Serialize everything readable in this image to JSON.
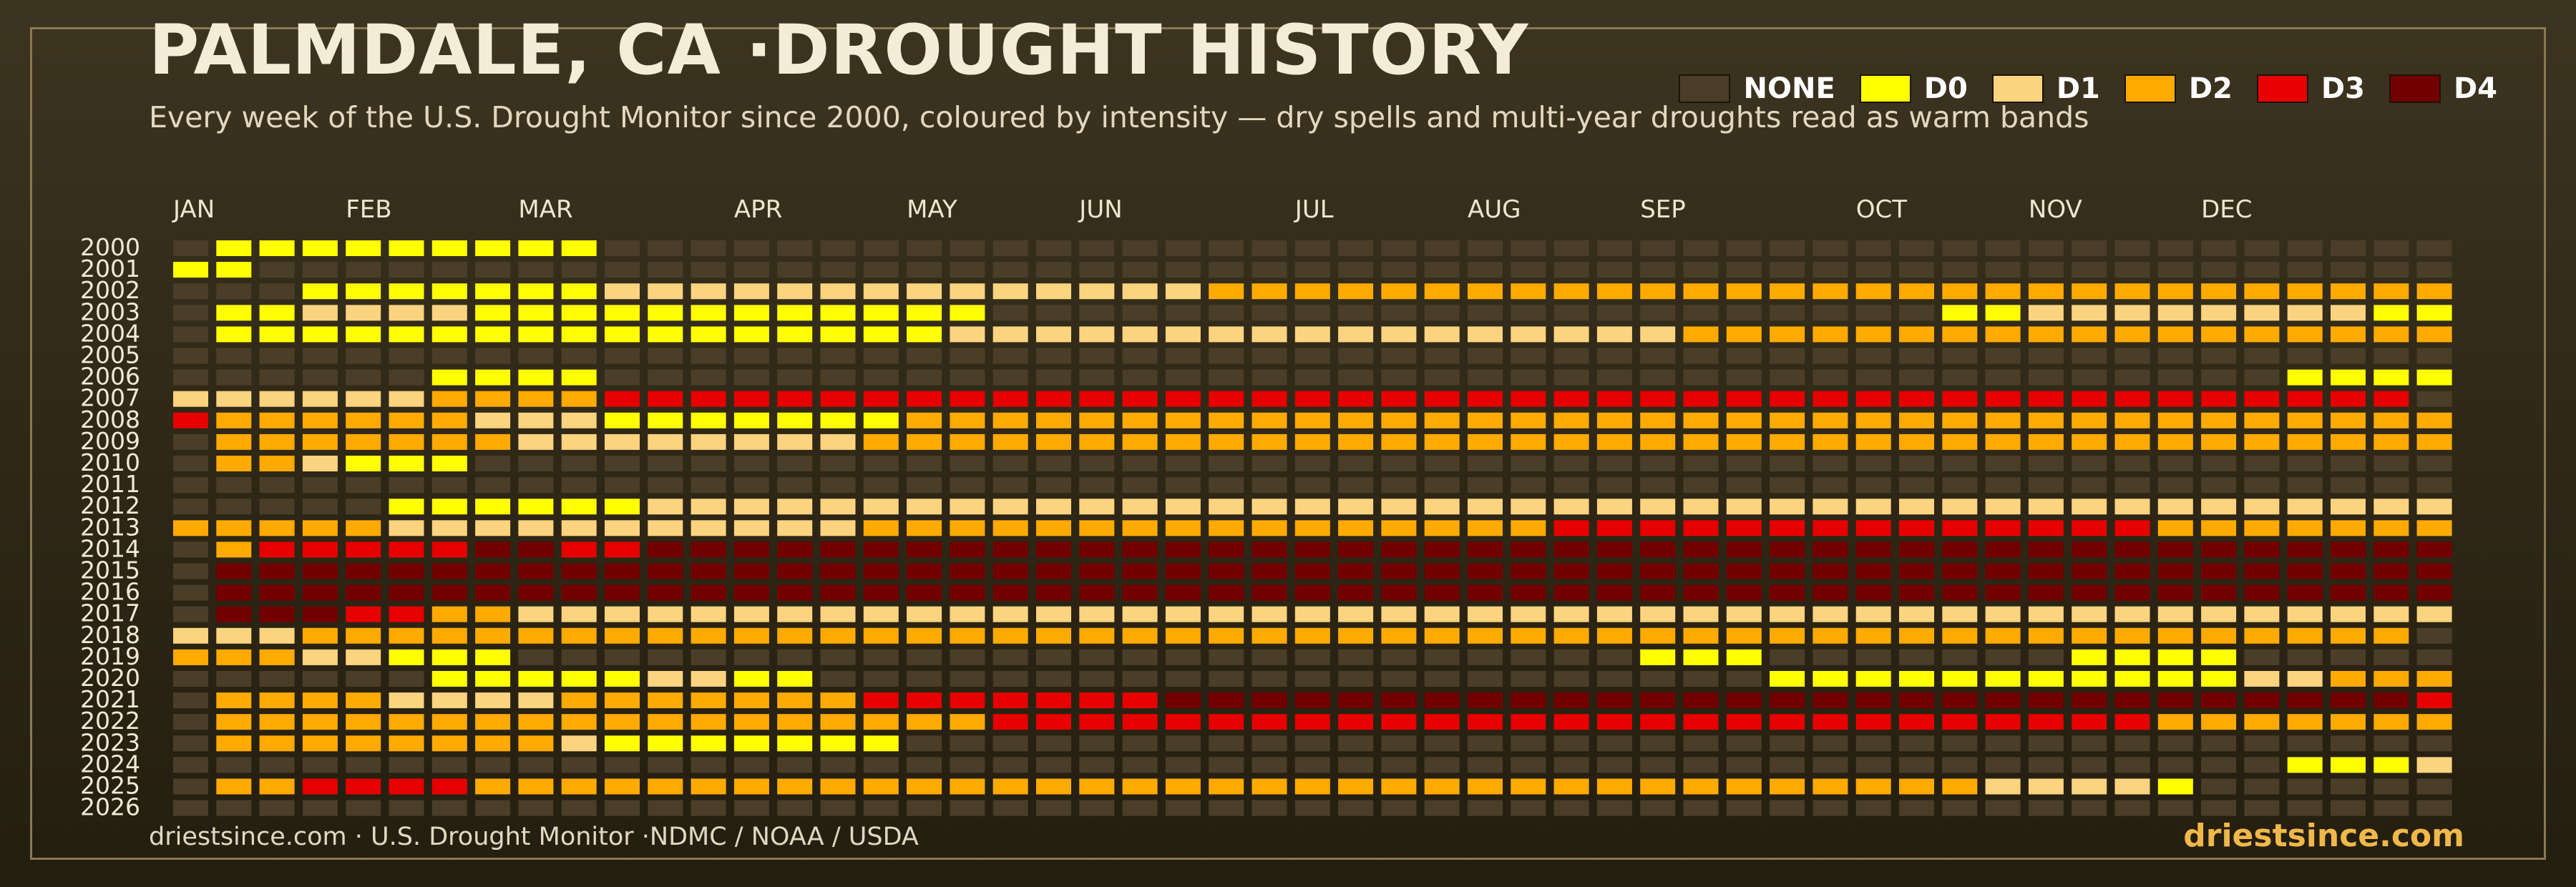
{
  "header": {
    "title": "PALMDALE, CA ·DROUGHT HISTORY",
    "subtitle": "Every week of the U.S. Drought Monitor since 2000, coloured by intensity — dry spells and multi-year droughts read as warm bands"
  },
  "legend": [
    {
      "label": "NONE",
      "color": "#4a3e28"
    },
    {
      "label": "D0",
      "color": "#ffff00"
    },
    {
      "label": "D1",
      "color": "#fcd37f"
    },
    {
      "label": "D2",
      "color": "#ffaa00"
    },
    {
      "label": "D3",
      "color": "#e60000"
    },
    {
      "label": "D4",
      "color": "#730000"
    }
  ],
  "footer": {
    "source": "driestsince.com  · U.S. Drought Monitor ·NDMC / NOAA / USDA",
    "brand": "driestsince.com"
  },
  "chart_data": {
    "type": "heatmap",
    "x_ticks": [
      {
        "label": "JAN",
        "col": 0
      },
      {
        "label": "FEB",
        "col": 4
      },
      {
        "label": "MAR",
        "col": 8
      },
      {
        "label": "APR",
        "col": 13
      },
      {
        "label": "MAY",
        "col": 17
      },
      {
        "label": "JUN",
        "col": 21
      },
      {
        "label": "JUL",
        "col": 26
      },
      {
        "label": "AUG",
        "col": 30
      },
      {
        "label": "SEP",
        "col": 34
      },
      {
        "label": "OCT",
        "col": 39
      },
      {
        "label": "NOV",
        "col": 43
      },
      {
        "label": "DEC",
        "col": 47
      }
    ],
    "categories": [
      "NONE",
      "D0",
      "D1",
      "D2",
      "D3",
      "D4"
    ],
    "weeks_per_year": 53,
    "rows": [
      {
        "year": "2000",
        "segments": [
          [
            0,
            1,
            0
          ],
          [
            1,
            10,
            1
          ],
          [
            10,
            53,
            0
          ]
        ]
      },
      {
        "year": "2001",
        "segments": [
          [
            0,
            2,
            1
          ],
          [
            2,
            53,
            0
          ]
        ]
      },
      {
        "year": "2002",
        "segments": [
          [
            0,
            3,
            0
          ],
          [
            3,
            10,
            1
          ],
          [
            10,
            24,
            2
          ],
          [
            24,
            53,
            3
          ]
        ]
      },
      {
        "year": "2003",
        "segments": [
          [
            0,
            1,
            0
          ],
          [
            1,
            3,
            1
          ],
          [
            3,
            7,
            2
          ],
          [
            7,
            19,
            1
          ],
          [
            19,
            41,
            0
          ],
          [
            41,
            43,
            1
          ],
          [
            43,
            48,
            2
          ],
          [
            48,
            51,
            2
          ],
          [
            51,
            53,
            1
          ]
        ]
      },
      {
        "year": "2004",
        "segments": [
          [
            0,
            1,
            0
          ],
          [
            1,
            10,
            1
          ],
          [
            10,
            18,
            1
          ],
          [
            18,
            35,
            2
          ],
          [
            35,
            53,
            3
          ]
        ]
      },
      {
        "year": "2005",
        "segments": [
          [
            0,
            53,
            0
          ]
        ]
      },
      {
        "year": "2006",
        "segments": [
          [
            0,
            6,
            0
          ],
          [
            6,
            10,
            1
          ],
          [
            10,
            49,
            0
          ],
          [
            49,
            53,
            1
          ]
        ]
      },
      {
        "year": "2007",
        "segments": [
          [
            0,
            6,
            2
          ],
          [
            6,
            10,
            3
          ],
          [
            10,
            52,
            4
          ],
          [
            52,
            53,
            0
          ]
        ]
      },
      {
        "year": "2008",
        "segments": [
          [
            0,
            1,
            4
          ],
          [
            1,
            7,
            3
          ],
          [
            7,
            10,
            2
          ],
          [
            10,
            17,
            1
          ],
          [
            17,
            53,
            3
          ]
        ]
      },
      {
        "year": "2009",
        "segments": [
          [
            0,
            1,
            0
          ],
          [
            1,
            8,
            3
          ],
          [
            8,
            10,
            2
          ],
          [
            10,
            16,
            2
          ],
          [
            16,
            53,
            3
          ]
        ]
      },
      {
        "year": "2010",
        "segments": [
          [
            0,
            1,
            0
          ],
          [
            1,
            3,
            3
          ],
          [
            3,
            4,
            2
          ],
          [
            4,
            7,
            1
          ],
          [
            7,
            53,
            0
          ]
        ]
      },
      {
        "year": "2011",
        "segments": [
          [
            0,
            53,
            0
          ]
        ]
      },
      {
        "year": "2012",
        "segments": [
          [
            0,
            5,
            0
          ],
          [
            5,
            11,
            1
          ],
          [
            11,
            53,
            2
          ]
        ]
      },
      {
        "year": "2013",
        "segments": [
          [
            0,
            5,
            3
          ],
          [
            5,
            11,
            2
          ],
          [
            11,
            16,
            2
          ],
          [
            16,
            32,
            3
          ],
          [
            32,
            46,
            4
          ],
          [
            46,
            53,
            3
          ]
        ]
      },
      {
        "year": "2014",
        "segments": [
          [
            0,
            1,
            0
          ],
          [
            1,
            2,
            3
          ],
          [
            2,
            7,
            4
          ],
          [
            7,
            9,
            5
          ],
          [
            9,
            11,
            4
          ],
          [
            11,
            53,
            5
          ]
        ]
      },
      {
        "year": "2015",
        "segments": [
          [
            0,
            1,
            0
          ],
          [
            1,
            53,
            5
          ]
        ]
      },
      {
        "year": "2016",
        "segments": [
          [
            0,
            1,
            0
          ],
          [
            1,
            53,
            5
          ]
        ]
      },
      {
        "year": "2017",
        "segments": [
          [
            0,
            1,
            0
          ],
          [
            1,
            4,
            5
          ],
          [
            4,
            6,
            4
          ],
          [
            6,
            8,
            3
          ],
          [
            8,
            53,
            2
          ]
        ]
      },
      {
        "year": "2018",
        "segments": [
          [
            0,
            3,
            2
          ],
          [
            3,
            6,
            3
          ],
          [
            6,
            52,
            3
          ],
          [
            52,
            53,
            0
          ]
        ]
      },
      {
        "year": "2019",
        "segments": [
          [
            0,
            3,
            3
          ],
          [
            3,
            5,
            2
          ],
          [
            5,
            8,
            1
          ],
          [
            8,
            34,
            0
          ],
          [
            34,
            37,
            1
          ],
          [
            37,
            44,
            0
          ],
          [
            44,
            48,
            1
          ],
          [
            48,
            53,
            0
          ]
        ]
      },
      {
        "year": "2020",
        "segments": [
          [
            0,
            6,
            0
          ],
          [
            6,
            11,
            1
          ],
          [
            11,
            13,
            2
          ],
          [
            13,
            15,
            1
          ],
          [
            15,
            37,
            0
          ],
          [
            37,
            48,
            1
          ],
          [
            48,
            50,
            2
          ],
          [
            50,
            53,
            3
          ]
        ]
      },
      {
        "year": "2021",
        "segments": [
          [
            0,
            1,
            0
          ],
          [
            1,
            5,
            3
          ],
          [
            5,
            9,
            2
          ],
          [
            9,
            16,
            3
          ],
          [
            16,
            23,
            4
          ],
          [
            23,
            52,
            5
          ],
          [
            52,
            53,
            4
          ]
        ]
      },
      {
        "year": "2022",
        "segments": [
          [
            0,
            1,
            0
          ],
          [
            1,
            19,
            3
          ],
          [
            19,
            46,
            4
          ],
          [
            46,
            53,
            3
          ]
        ]
      },
      {
        "year": "2023",
        "segments": [
          [
            0,
            1,
            0
          ],
          [
            1,
            9,
            3
          ],
          [
            9,
            10,
            2
          ],
          [
            10,
            17,
            1
          ],
          [
            17,
            53,
            0
          ]
        ]
      },
      {
        "year": "2024",
        "segments": [
          [
            0,
            49,
            0
          ],
          [
            49,
            52,
            1
          ],
          [
            52,
            53,
            2
          ]
        ]
      },
      {
        "year": "2025",
        "segments": [
          [
            0,
            1,
            0
          ],
          [
            1,
            3,
            3
          ],
          [
            3,
            7,
            4
          ],
          [
            7,
            42,
            3
          ],
          [
            42,
            46,
            2
          ],
          [
            46,
            47,
            1
          ],
          [
            47,
            53,
            0
          ]
        ]
      },
      {
        "year": "2026",
        "segments": [
          [
            0,
            53,
            0
          ]
        ]
      }
    ]
  }
}
